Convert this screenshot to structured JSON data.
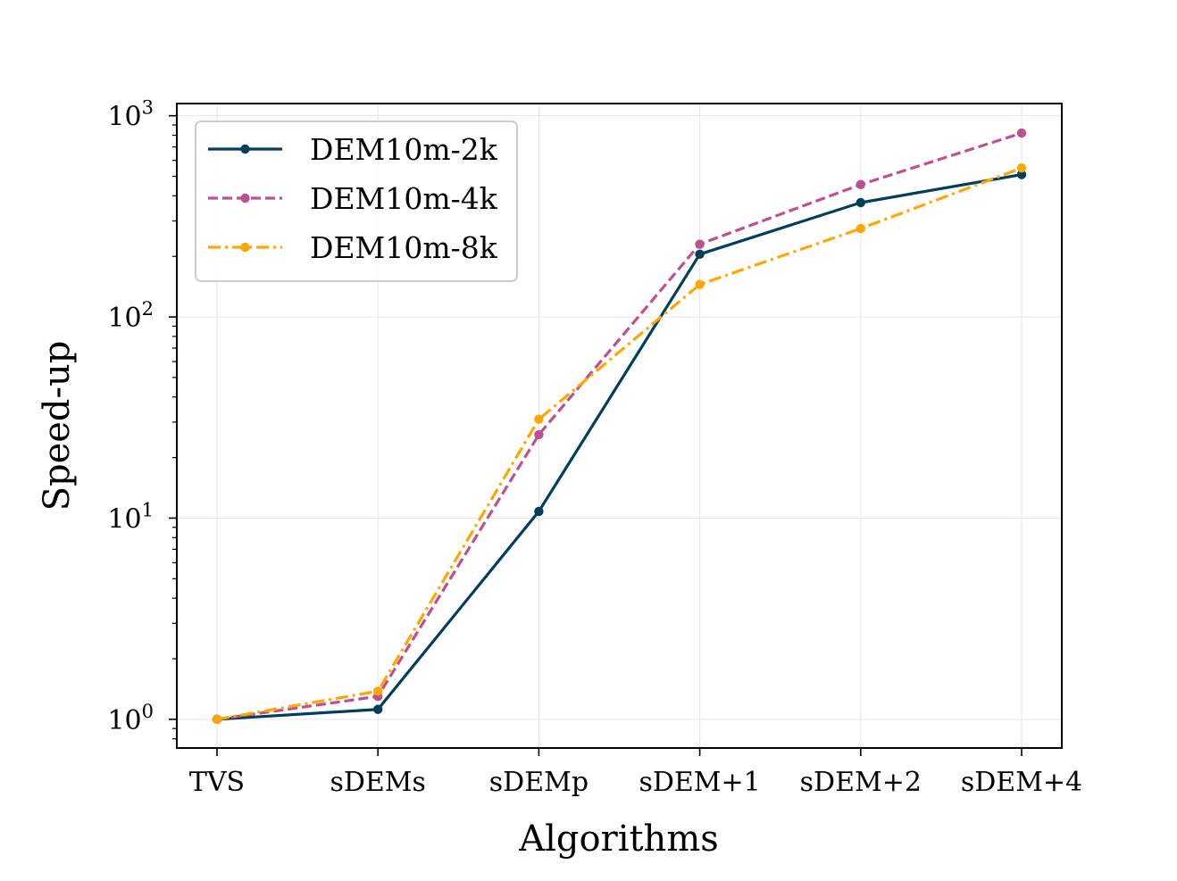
{
  "chart_data": {
    "type": "line",
    "title": "",
    "xlabel": "Algorithms",
    "ylabel": "Speed-up",
    "yscale": "log",
    "ylim": [
      0.72,
      1150
    ],
    "grid": true,
    "legend_position": "top-left",
    "categories": [
      "TVS",
      "sDEMs",
      "sDEMp",
      "sDEM+1",
      "sDEM+2",
      "sDEM+4"
    ],
    "y_ticks": [
      {
        "value": 1,
        "base": "10",
        "exp": "0"
      },
      {
        "value": 10,
        "base": "10",
        "exp": "1"
      },
      {
        "value": 100,
        "base": "10",
        "exp": "2"
      },
      {
        "value": 1000,
        "base": "10",
        "exp": "3"
      }
    ],
    "series": [
      {
        "name": "DEM10m-2k",
        "color": "#003f5c",
        "style": "solid",
        "values": [
          1.0,
          1.12,
          10.8,
          205,
          370,
          510
        ]
      },
      {
        "name": "DEM10m-4k",
        "color": "#bc5090",
        "style": "dashed",
        "values": [
          1.0,
          1.3,
          26,
          230,
          455,
          820
        ]
      },
      {
        "name": "DEM10m-8k",
        "color": "#ffa600",
        "style": "dashdot",
        "values": [
          1.0,
          1.38,
          31,
          145,
          275,
          550
        ]
      }
    ]
  }
}
